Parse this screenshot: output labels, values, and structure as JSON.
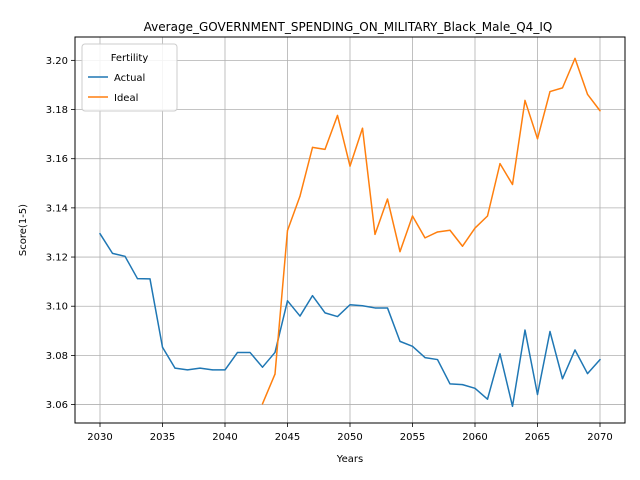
{
  "chart_data": {
    "type": "line",
    "title": "Average_GOVERNMENT_SPENDING_ON_MILITARY_Black_Male_Q4_IQ",
    "xlabel": "Years",
    "ylabel": "Score(1-5)",
    "xlim": [
      2028,
      2072
    ],
    "ylim": [
      3.0525,
      3.2095
    ],
    "xticks": [
      2030,
      2035,
      2040,
      2045,
      2050,
      2055,
      2060,
      2065,
      2070
    ],
    "yticks": [
      3.06,
      3.08,
      3.1,
      3.12,
      3.14,
      3.16,
      3.18,
      3.2
    ],
    "ytick_labels": [
      "3.06",
      "3.08",
      "3.10",
      "3.12",
      "3.14",
      "3.16",
      "3.18",
      "3.20"
    ],
    "grid": true,
    "legend": {
      "title": "Fertility",
      "placement": "top-left"
    },
    "series": [
      {
        "name": "Actual",
        "color": "#1f77b4",
        "x": [
          2030,
          2031,
          2032,
          2033,
          2034,
          2035,
          2036,
          2037,
          2038,
          2039,
          2040,
          2041,
          2042,
          2043,
          2044,
          2045,
          2046,
          2047,
          2048,
          2049,
          2050,
          2051,
          2052,
          2053,
          2054,
          2055,
          2056,
          2057,
          2058,
          2059,
          2060,
          2061,
          2062,
          2063,
          2064,
          2065,
          2066,
          2067,
          2068,
          2069,
          2070
        ],
        "y": [
          3.1295,
          3.1215,
          3.1203,
          3.1112,
          3.1111,
          3.0833,
          3.0748,
          3.0741,
          3.0748,
          3.0741,
          3.0741,
          3.0812,
          3.0812,
          3.0752,
          3.0812,
          3.1022,
          3.096,
          3.1043,
          3.0973,
          3.0958,
          3.1006,
          3.1002,
          3.0993,
          3.0993,
          3.0857,
          3.0837,
          3.0791,
          3.0783,
          3.0684,
          3.0681,
          3.0666,
          3.0622,
          3.0806,
          3.0593,
          3.0903,
          3.0641,
          3.0897,
          3.0705,
          3.0822,
          3.0726,
          3.0783
        ]
      },
      {
        "name": "Ideal",
        "color": "#ff7f0e",
        "x": [
          2043,
          2044,
          2045,
          2046,
          2047,
          2048,
          2049,
          2050,
          2051,
          2052,
          2053,
          2054,
          2055,
          2056,
          2057,
          2058,
          2059,
          2060,
          2061,
          2062,
          2063,
          2064,
          2065,
          2066,
          2067,
          2068,
          2069,
          2070
        ],
        "y": [
          3.0603,
          3.0724,
          3.1308,
          3.1448,
          3.1646,
          3.1638,
          3.1776,
          3.157,
          3.1724,
          3.1292,
          3.1436,
          3.1222,
          3.1367,
          3.1278,
          3.1302,
          3.1309,
          3.1244,
          3.1318,
          3.1367,
          3.158,
          3.1495,
          3.1837,
          3.1681,
          3.1873,
          3.1888,
          3.2008,
          3.1862,
          3.1795
        ]
      }
    ]
  }
}
